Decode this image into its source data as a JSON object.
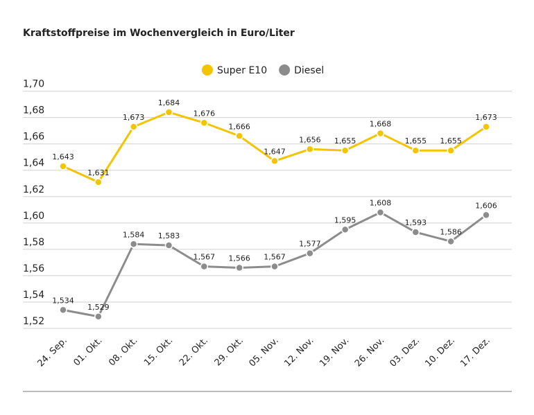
{
  "chart_data": {
    "type": "line",
    "title": "Kraftstoffpreise im Wochenvergleich in Euro/Liter",
    "categories": [
      "24. Sep.",
      "01. Okt.",
      "08. Okt.",
      "15. Okt.",
      "22. Okt.",
      "29. Okt.",
      "05. Nov.",
      "12. Nov.",
      "19. Nov.",
      "26. Nov.",
      "03. Dez.",
      "10. Dez.",
      "17. Dez."
    ],
    "series": [
      {
        "name": "Super E10",
        "color": "#f5c400",
        "values": [
          1.643,
          1.631,
          1.673,
          1.684,
          1.676,
          1.666,
          1.647,
          1.656,
          1.655,
          1.668,
          1.655,
          1.655,
          1.673
        ],
        "value_labels": [
          "1,643",
          "1,631",
          "1,673",
          "1,684",
          "1,676",
          "1,666",
          "1,647",
          "1,656",
          "1,655",
          "1,668",
          "1,655",
          "1,655",
          "1,673"
        ]
      },
      {
        "name": "Diesel",
        "color": "#8c8c8c",
        "values": [
          1.534,
          1.529,
          1.584,
          1.583,
          1.567,
          1.566,
          1.567,
          1.577,
          1.595,
          1.608,
          1.593,
          1.586,
          1.606
        ],
        "value_labels": [
          "1,534",
          "1,529",
          "1,584",
          "1,583",
          "1,567",
          "1,566",
          "1,567",
          "1,577",
          "1,595",
          "1,608",
          "1,593",
          "1,586",
          "1,606"
        ]
      }
    ],
    "ylim": [
      1.52,
      1.7
    ],
    "yticks": [
      {
        "value": 1.52,
        "label": "1,52"
      },
      {
        "value": 1.54,
        "label": "1,54"
      },
      {
        "value": 1.56,
        "label": "1,56"
      },
      {
        "value": 1.58,
        "label": "1,58"
      },
      {
        "value": 1.6,
        "label": "1,60"
      },
      {
        "value": 1.62,
        "label": "1,62"
      },
      {
        "value": 1.64,
        "label": "1,64"
      },
      {
        "value": 1.66,
        "label": "1,66"
      },
      {
        "value": 1.68,
        "label": "1,68"
      },
      {
        "value": 1.7,
        "label": "1,70"
      }
    ],
    "grid": true,
    "legend": "top"
  }
}
